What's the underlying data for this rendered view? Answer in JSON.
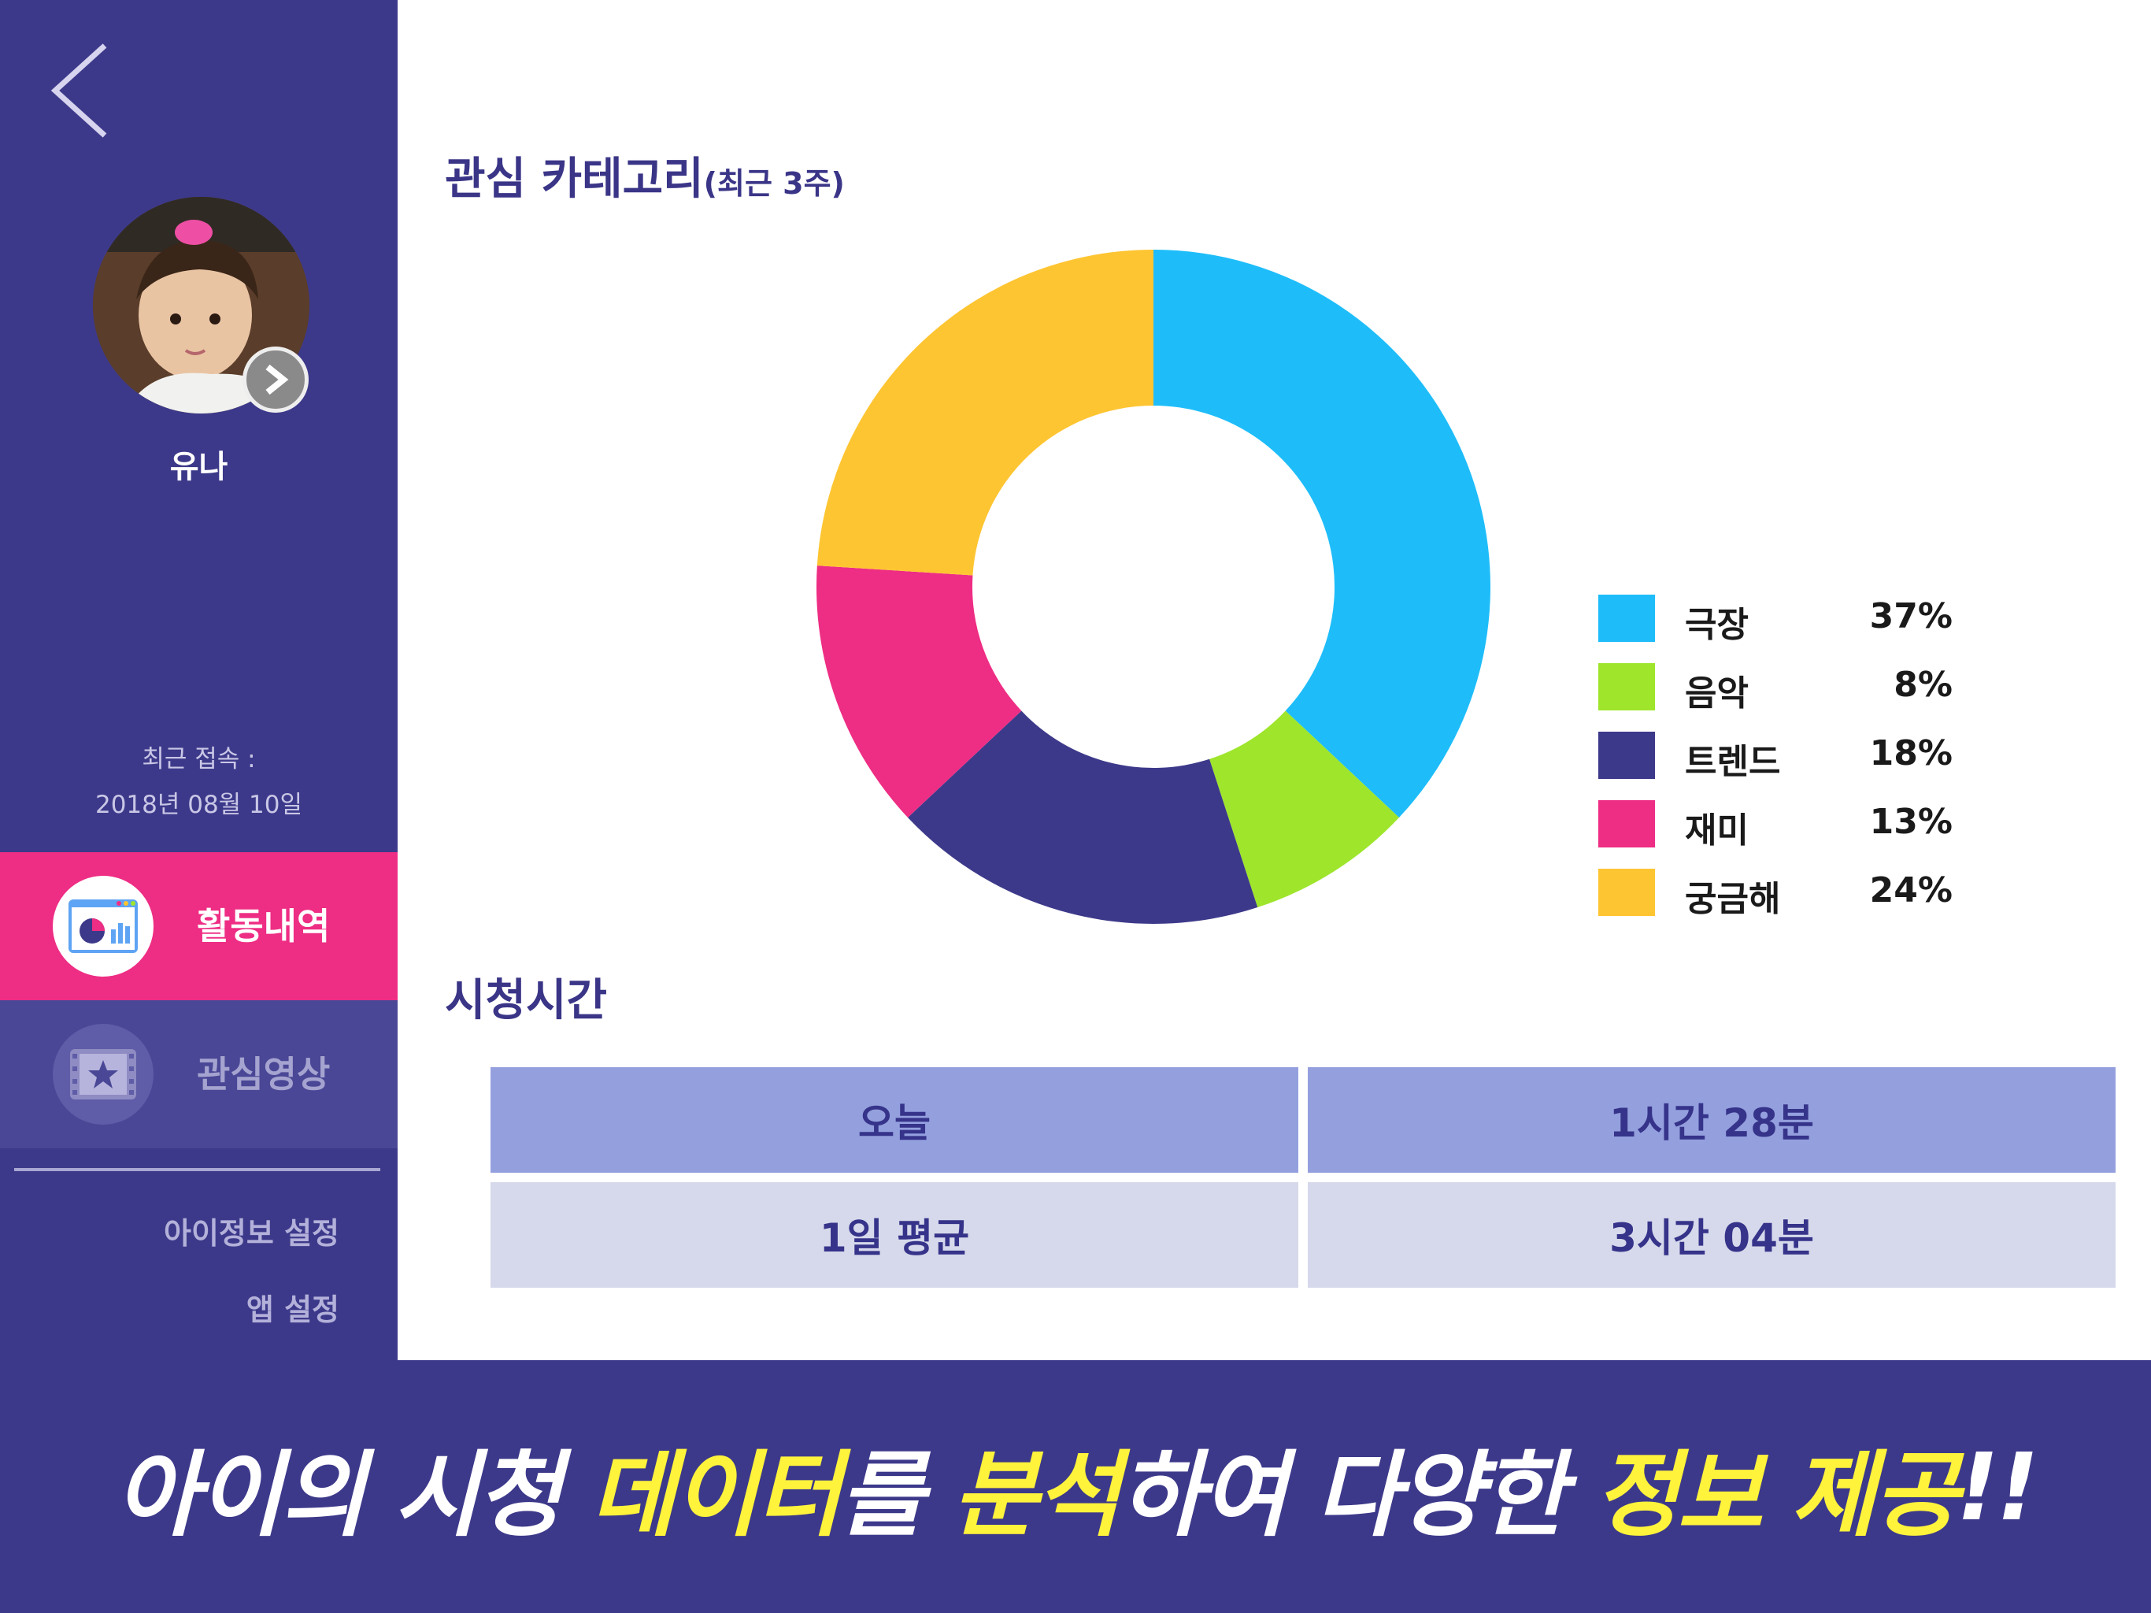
{
  "sidebar": {
    "back_icon": "chevron-left-icon",
    "child_name": "유나",
    "last_access_label": "최근 접속 :",
    "last_access_date": "2018년 08월 10일",
    "nav": [
      {
        "label": "활동내역",
        "icon": "activity-chart-icon",
        "active": true
      },
      {
        "label": "관심영상",
        "icon": "star-film-icon",
        "active": false
      }
    ],
    "links": [
      "아이정보 설정",
      "앱 설정"
    ]
  },
  "category": {
    "title": "관심 카테고리",
    "subtitle": "(최근 3주)"
  },
  "chart_data": {
    "type": "pie",
    "variant": "donut",
    "categories": [
      "극장",
      "음악",
      "트렌드",
      "재미",
      "궁금해"
    ],
    "values": [
      37,
      8,
      18,
      13,
      24
    ],
    "value_labels": [
      "37%",
      "8%",
      "18%",
      "13%",
      "24%"
    ],
    "colors": [
      "#1ebdfa",
      "#9ee52c",
      "#3d398a",
      "#ee2d84",
      "#fec532"
    ],
    "legend_position": "right"
  },
  "watch_time": {
    "title": "시청시간",
    "rows": [
      {
        "label": "오늘",
        "value": "1시간 28분"
      },
      {
        "label": "1일 평균",
        "value": "3시간 04분"
      }
    ]
  },
  "banner": {
    "parts": [
      {
        "text": "아이의 시청 ",
        "highlight": false
      },
      {
        "text": "데이터",
        "highlight": true
      },
      {
        "text": "를 ",
        "highlight": false
      },
      {
        "text": "분석",
        "highlight": true
      },
      {
        "text": "하여 다양한 ",
        "highlight": false
      },
      {
        "text": "정보 제공",
        "highlight": true
      },
      {
        "text": "!!",
        "highlight": false
      }
    ]
  },
  "colors": {
    "primary": "#3d398a",
    "accent": "#ee2d84",
    "highlight": "#fff33b"
  }
}
